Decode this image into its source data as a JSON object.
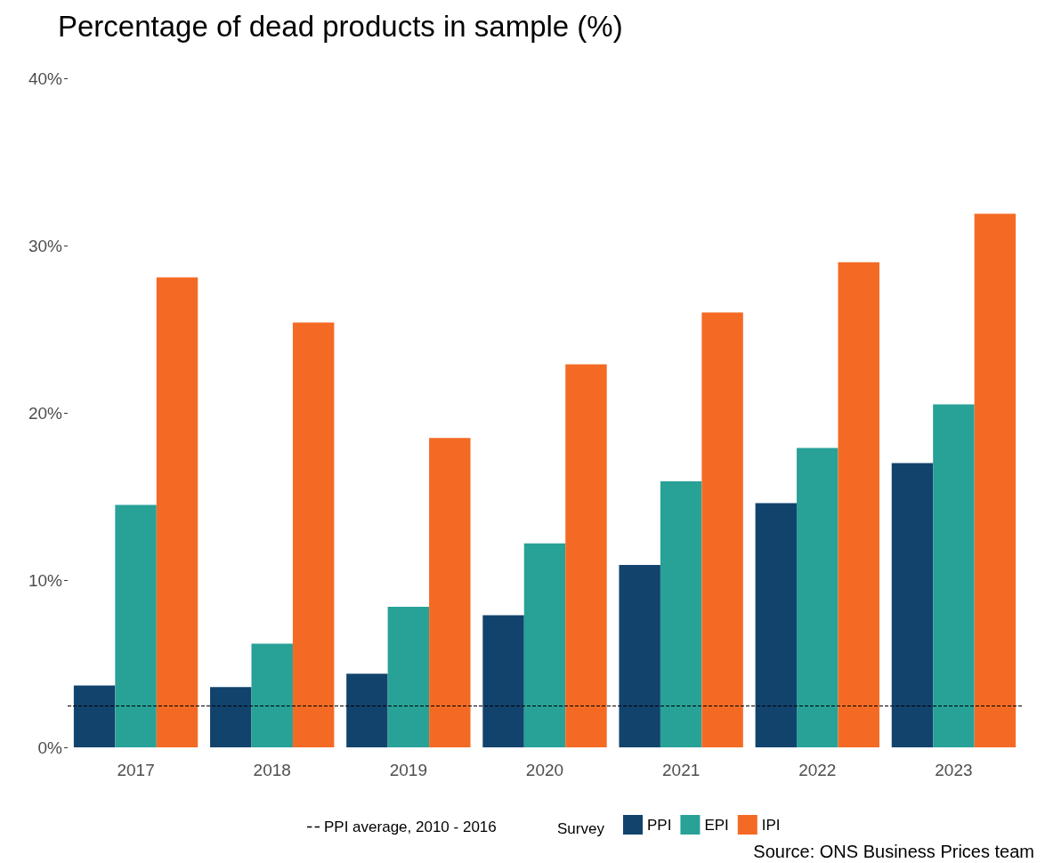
{
  "chart_data": {
    "type": "bar",
    "title": "Percentage of dead products in sample (%)",
    "categories": [
      "2017",
      "2018",
      "2019",
      "2020",
      "2021",
      "2022",
      "2023"
    ],
    "series": [
      {
        "name": "PPI",
        "color": "#12436d",
        "values": [
          3.7,
          3.6,
          4.4,
          7.9,
          10.9,
          14.6,
          17.0
        ]
      },
      {
        "name": "EPI",
        "color": "#28a197",
        "values": [
          14.5,
          6.2,
          8.4,
          12.2,
          15.9,
          17.9,
          20.5
        ]
      },
      {
        "name": "IPI",
        "color": "#f46a25",
        "values": [
          28.1,
          25.4,
          18.5,
          22.9,
          26.0,
          29.0,
          31.9
        ]
      }
    ],
    "ylim": [
      0,
      40
    ],
    "yticks": [
      {
        "value": 0,
        "label": "0%"
      },
      {
        "value": 10,
        "label": "10%"
      },
      {
        "value": 20,
        "label": "20%"
      },
      {
        "value": 30,
        "label": "30%"
      },
      {
        "value": 40,
        "label": "40%"
      }
    ],
    "ref_lines": [
      {
        "axis": "y",
        "value": 2.5,
        "label": "PPI average, 2010 - 2016",
        "color": "#000000",
        "line_style": "dashed"
      }
    ],
    "legend_title": "Survey",
    "legend": "bottom",
    "grid": false,
    "annotations": [
      "Source: ONS Business Prices team"
    ]
  }
}
